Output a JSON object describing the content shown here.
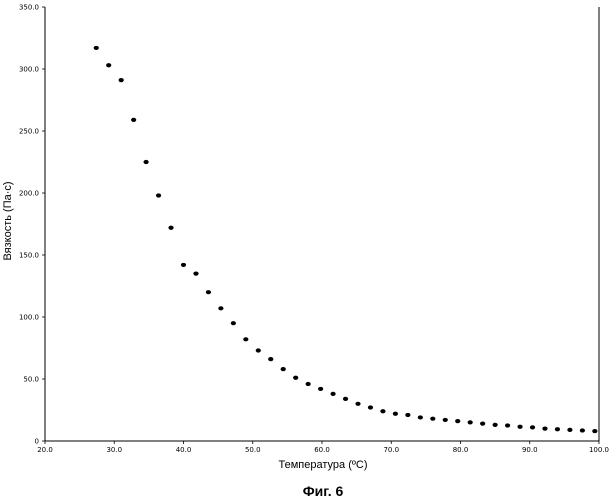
{
  "chart_data": {
    "type": "scatter",
    "title": "",
    "xlabel": "Температура (ºC)",
    "ylabel": "Вязкость (Па·с)",
    "xlim": [
      20.0,
      100.0
    ],
    "ylim": [
      0,
      350.0
    ],
    "x_ticks": [
      "20.0",
      "30.0",
      "40.0",
      "50.0",
      "60.0",
      "70.0",
      "80.0",
      "90.0",
      "100.0"
    ],
    "y_ticks": [
      "0",
      "50.0",
      "100.0",
      "150.0",
      "200.0",
      "250.0",
      "300.0",
      "350.0"
    ],
    "grid": false,
    "legend": "none",
    "series": [
      {
        "x": [
          27.4,
          29.2,
          31.0,
          32.8,
          34.6,
          36.4,
          38.2,
          40.0,
          41.8,
          43.6,
          45.4,
          47.2,
          49.0,
          50.8,
          52.6,
          54.4,
          56.2,
          58.0,
          59.8,
          61.6,
          63.4,
          65.2,
          67.0,
          68.8,
          70.6,
          72.4,
          74.2,
          76.0,
          77.8,
          79.6,
          81.4,
          83.2,
          85.0,
          86.8,
          88.6,
          90.4,
          92.2,
          94.0,
          95.8,
          97.6,
          99.4
        ],
        "y": [
          317,
          303,
          291,
          259,
          225,
          198,
          172,
          142,
          135,
          120,
          107,
          95,
          82,
          73,
          66,
          58,
          51,
          46,
          42,
          38,
          34,
          30,
          27,
          24,
          22,
          21,
          19,
          18,
          17,
          16,
          15,
          14,
          13,
          12.5,
          11.5,
          11,
          10,
          9.5,
          9,
          8.5,
          8
        ]
      }
    ]
  },
  "caption": "Фиг. 6",
  "colors": {
    "marker": "#000000",
    "axis": "#000000"
  }
}
